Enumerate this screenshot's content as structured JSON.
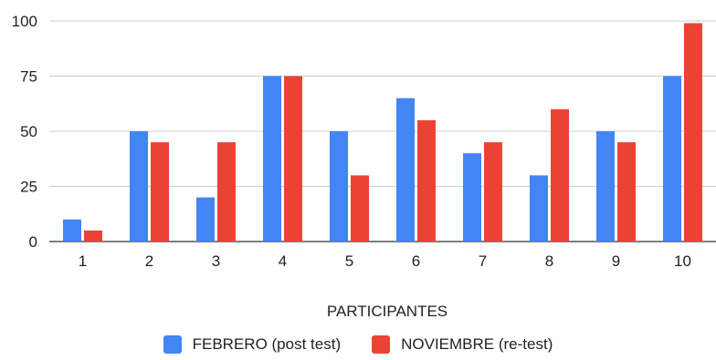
{
  "chart_data": {
    "type": "bar",
    "categories": [
      "1",
      "2",
      "3",
      "4",
      "5",
      "6",
      "7",
      "8",
      "9",
      "10"
    ],
    "series": [
      {
        "name": "FEBRERO (post test)",
        "color": "#4285F4",
        "values": [
          10,
          50,
          20,
          75,
          50,
          65,
          40,
          30,
          50,
          75
        ]
      },
      {
        "name": "NOVIEMBRE (re-test)",
        "color": "#EA4335",
        "values": [
          5,
          45,
          45,
          75,
          30,
          55,
          45,
          60,
          45,
          99
        ]
      }
    ],
    "xlabel": "PARTICIPANTES",
    "ylabel": "",
    "ylim": [
      0,
      100
    ],
    "yticks": [
      "0",
      "25",
      "50",
      "75",
      "100"
    ],
    "grid": true,
    "legend_position": "bottom"
  }
}
